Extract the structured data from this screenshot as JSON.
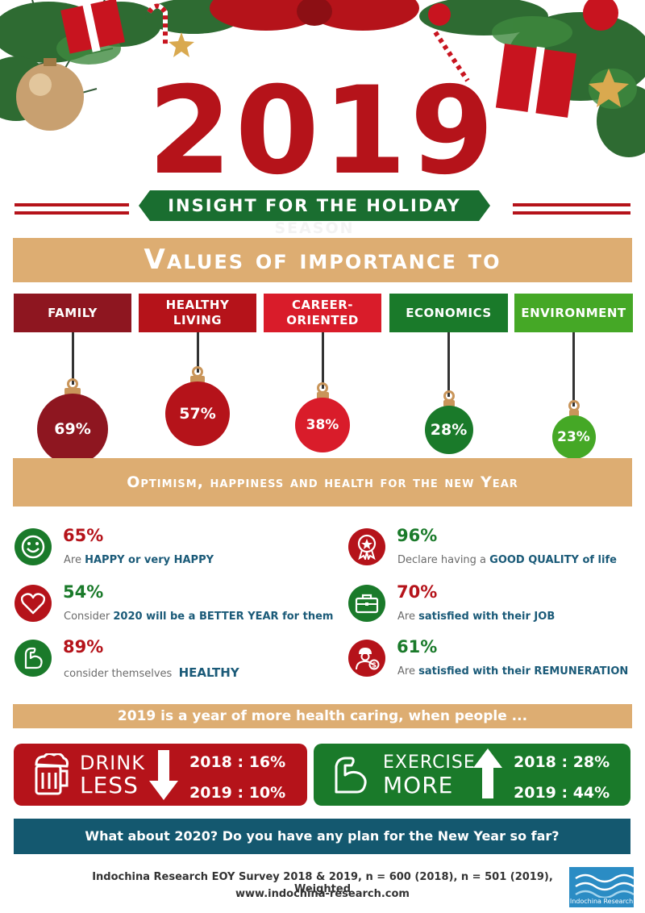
{
  "header": {
    "year": "2019",
    "subtitle": "INSIGHT FOR THE HOLIDAY",
    "subtitle_overflow": "SEASON"
  },
  "values_section": {
    "title": "Values of importance to",
    "items": [
      {
        "label": "FAMILY",
        "percent": "69%",
        "color": "#8e1620"
      },
      {
        "label": "HEALTHY LIVING",
        "percent": "57%",
        "color": "#b5131a"
      },
      {
        "label": "CAREER-ORIENTED",
        "percent": "38%",
        "color": "#d91c2a"
      },
      {
        "label": "ECONOMICS",
        "percent": "28%",
        "color": "#1a7a2a"
      },
      {
        "label": "ENVIRONMENT",
        "percent": "23%",
        "color": "#45a826"
      }
    ]
  },
  "optimism_section": {
    "title": "Optimism, happiness and health for the new Year",
    "stats": [
      {
        "icon": "smiley-icon",
        "percent": "65%",
        "pre": "Are ",
        "hl": "HAPPY or very HAPPY",
        "post": ""
      },
      {
        "icon": "heart-icon",
        "percent": "54%",
        "pre": "Consider ",
        "hl": "2020 will be a BETTER YEAR for them",
        "post": ""
      },
      {
        "icon": "muscle-icon",
        "percent": "89%",
        "pre": "consider themselves  ",
        "hl": "HEALTHY",
        "post": ""
      },
      {
        "icon": "award-icon",
        "percent": "96%",
        "pre": "Declare having a ",
        "hl": "GOOD QUALITY of life",
        "post": ""
      },
      {
        "icon": "briefcase-icon",
        "percent": "70%",
        "pre": "Are ",
        "hl": "satisfied with their JOB",
        "post": ""
      },
      {
        "icon": "worker-money-icon",
        "percent": "61%",
        "pre": "Are ",
        "hl": "satisfied with their REMUNERATION",
        "post": ""
      }
    ]
  },
  "health_section": {
    "title": "2019 is a year of more health caring, when people ...",
    "drink": {
      "word1": "DRINK",
      "word2": "LESS",
      "v2018": "2018 : 16%",
      "v2019": "2019 : 10%"
    },
    "exercise": {
      "word1": "EXERCISE",
      "word2": "MORE",
      "v2018": "2018 : 28%",
      "v2019": "2019 : 44%"
    }
  },
  "cta": "What about 2020? Do you have any plan for the New Year so far?",
  "footer": {
    "source": "Indochina Research EOY Survey 2018 & 2019, n = 600 (2018), n = 501 (2019), Weighted",
    "url": "www.indochina-research.com",
    "logo_text": "Indochina Research"
  },
  "colors": {
    "red": "#b5131a",
    "green": "#1a7a2a",
    "tan": "#ddad72",
    "navy": "#14586f"
  }
}
